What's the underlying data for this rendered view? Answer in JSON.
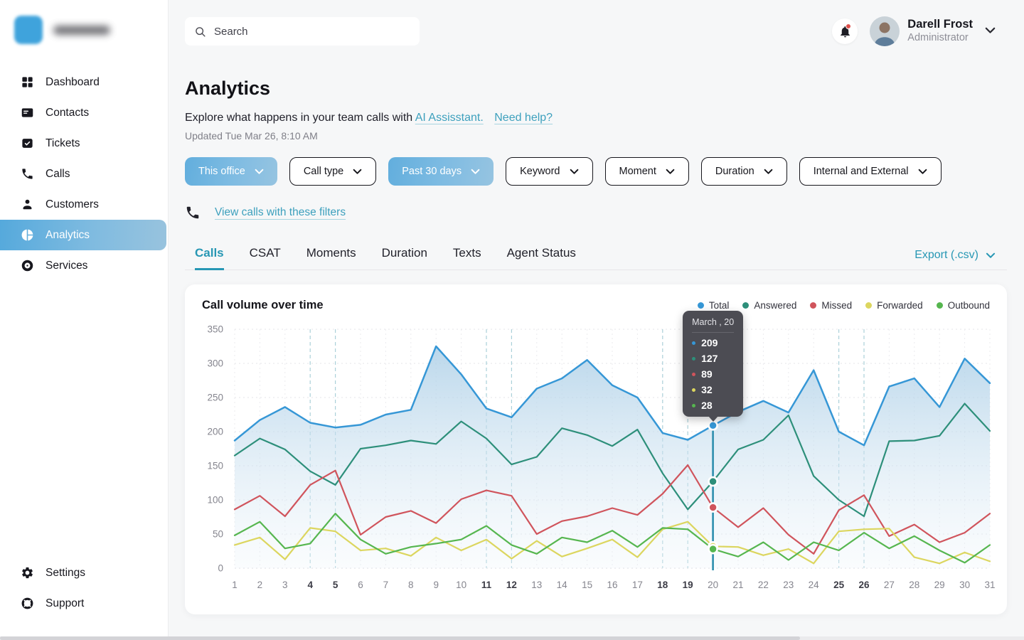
{
  "topbar": {
    "search_placeholder": "Search",
    "user": {
      "name": "Darell Frost",
      "role": "Administrator"
    }
  },
  "sidebar": {
    "items": [
      {
        "label": "Dashboard",
        "icon": "dashboard-icon",
        "active": false
      },
      {
        "label": "Contacts",
        "icon": "contacts-icon",
        "active": false
      },
      {
        "label": "Tickets",
        "icon": "ticket-icon",
        "active": false
      },
      {
        "label": "Calls",
        "icon": "phone-icon",
        "active": false
      },
      {
        "label": "Customers",
        "icon": "person-icon",
        "active": false
      },
      {
        "label": "Analytics",
        "icon": "pie-chart-icon",
        "active": true
      },
      {
        "label": "Services",
        "icon": "ring-icon",
        "active": false
      }
    ],
    "footer_items": [
      {
        "label": "Settings",
        "icon": "gear-icon"
      },
      {
        "label": "Support",
        "icon": "lifebuoy-icon"
      }
    ]
  },
  "page": {
    "title": "Analytics",
    "description": "Explore what happens in your team calls with",
    "link_ai": "AI Assisstant.",
    "link_help": "Need help?",
    "updated": "Updated Tue Mar 26, 8:10 AM",
    "view_calls_link": "View calls with these filters"
  },
  "filters": [
    {
      "label": "This office",
      "selected": true
    },
    {
      "label": "Call type",
      "selected": false
    },
    {
      "label": "Past 30 days",
      "selected": true
    },
    {
      "label": "Keyword",
      "selected": false
    },
    {
      "label": "Moment",
      "selected": false
    },
    {
      "label": "Duration",
      "selected": false
    },
    {
      "label": "Internal and External",
      "selected": false
    }
  ],
  "tabs": {
    "items": [
      "Calls",
      "CSAT",
      "Moments",
      "Duration",
      "Texts",
      "Agent Status"
    ],
    "active": "Calls",
    "export_label": "Export (.csv)"
  },
  "chart_data": {
    "type": "line",
    "title": "Call volume over time",
    "x": [
      1,
      2,
      3,
      4,
      5,
      6,
      7,
      8,
      9,
      10,
      11,
      12,
      13,
      14,
      15,
      16,
      17,
      18,
      19,
      20,
      21,
      22,
      23,
      24,
      25,
      26,
      27,
      28,
      29,
      30,
      31
    ],
    "bold_x": [
      4,
      5,
      11,
      12,
      18,
      19,
      25,
      26
    ],
    "ylim": [
      0,
      350
    ],
    "yticks": [
      0,
      50,
      100,
      150,
      200,
      250,
      300,
      350
    ],
    "grid": true,
    "legend_position": "top-right",
    "series": [
      {
        "name": "Total",
        "color": "#3697d6",
        "fill": true,
        "values": [
          187,
          217,
          236,
          213,
          206,
          210,
          225,
          232,
          325,
          284,
          234,
          221,
          263,
          278,
          305,
          268,
          250,
          198,
          188,
          209,
          229,
          245,
          228,
          290,
          200,
          180,
          266,
          278,
          236,
          307,
          271
        ]
      },
      {
        "name": "Answered",
        "color": "#2d8f7a",
        "fill": false,
        "values": [
          165,
          190,
          174,
          142,
          122,
          175,
          180,
          187,
          182,
          215,
          190,
          152,
          163,
          205,
          195,
          179,
          203,
          139,
          86,
          127,
          174,
          188,
          224,
          135,
          100,
          76,
          186,
          187,
          194,
          241,
          201
        ]
      },
      {
        "name": "Missed",
        "color": "#d0545c",
        "fill": false,
        "values": [
          86,
          106,
          76,
          122,
          143,
          49,
          75,
          84,
          66,
          101,
          114,
          106,
          50,
          69,
          76,
          88,
          78,
          109,
          151,
          89,
          60,
          88,
          49,
          21,
          85,
          107,
          47,
          64,
          38,
          52,
          80
        ]
      },
      {
        "name": "Forwarded",
        "color": "#dcd65f",
        "fill": false,
        "values": [
          34,
          45,
          13,
          59,
          54,
          26,
          29,
          18,
          45,
          26,
          42,
          14,
          40,
          17,
          29,
          42,
          16,
          57,
          68,
          32,
          31,
          19,
          28,
          7,
          54,
          57,
          58,
          16,
          7,
          23,
          10
        ]
      },
      {
        "name": "Outbound",
        "color": "#56b64f",
        "fill": false,
        "values": [
          48,
          68,
          29,
          36,
          80,
          42,
          21,
          31,
          36,
          42,
          62,
          34,
          21,
          45,
          38,
          55,
          31,
          59,
          57,
          28,
          17,
          38,
          12,
          38,
          26,
          52,
          29,
          47,
          26,
          8,
          34
        ]
      }
    ],
    "tooltip": {
      "day": 20,
      "title": "March , 20",
      "values": [
        209,
        127,
        89,
        32,
        28
      ]
    }
  }
}
